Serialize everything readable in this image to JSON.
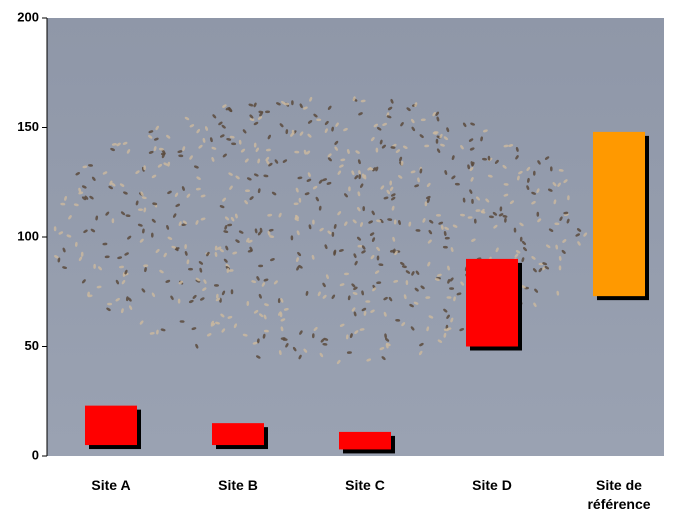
{
  "chart_data": {
    "type": "floating-bar",
    "categories": [
      "Site A",
      "Site B",
      "Site C",
      "Site D",
      "Site de référence"
    ],
    "low": [
      5,
      5,
      3,
      50,
      73
    ],
    "high": [
      23,
      15,
      11,
      90,
      148
    ],
    "colors": [
      "#ff0000",
      "#ff0000",
      "#ff0000",
      "#ff0000",
      "#ff9900"
    ],
    "ylim": [
      0,
      200
    ],
    "yticks": [
      0,
      50,
      100,
      150,
      200
    ]
  }
}
